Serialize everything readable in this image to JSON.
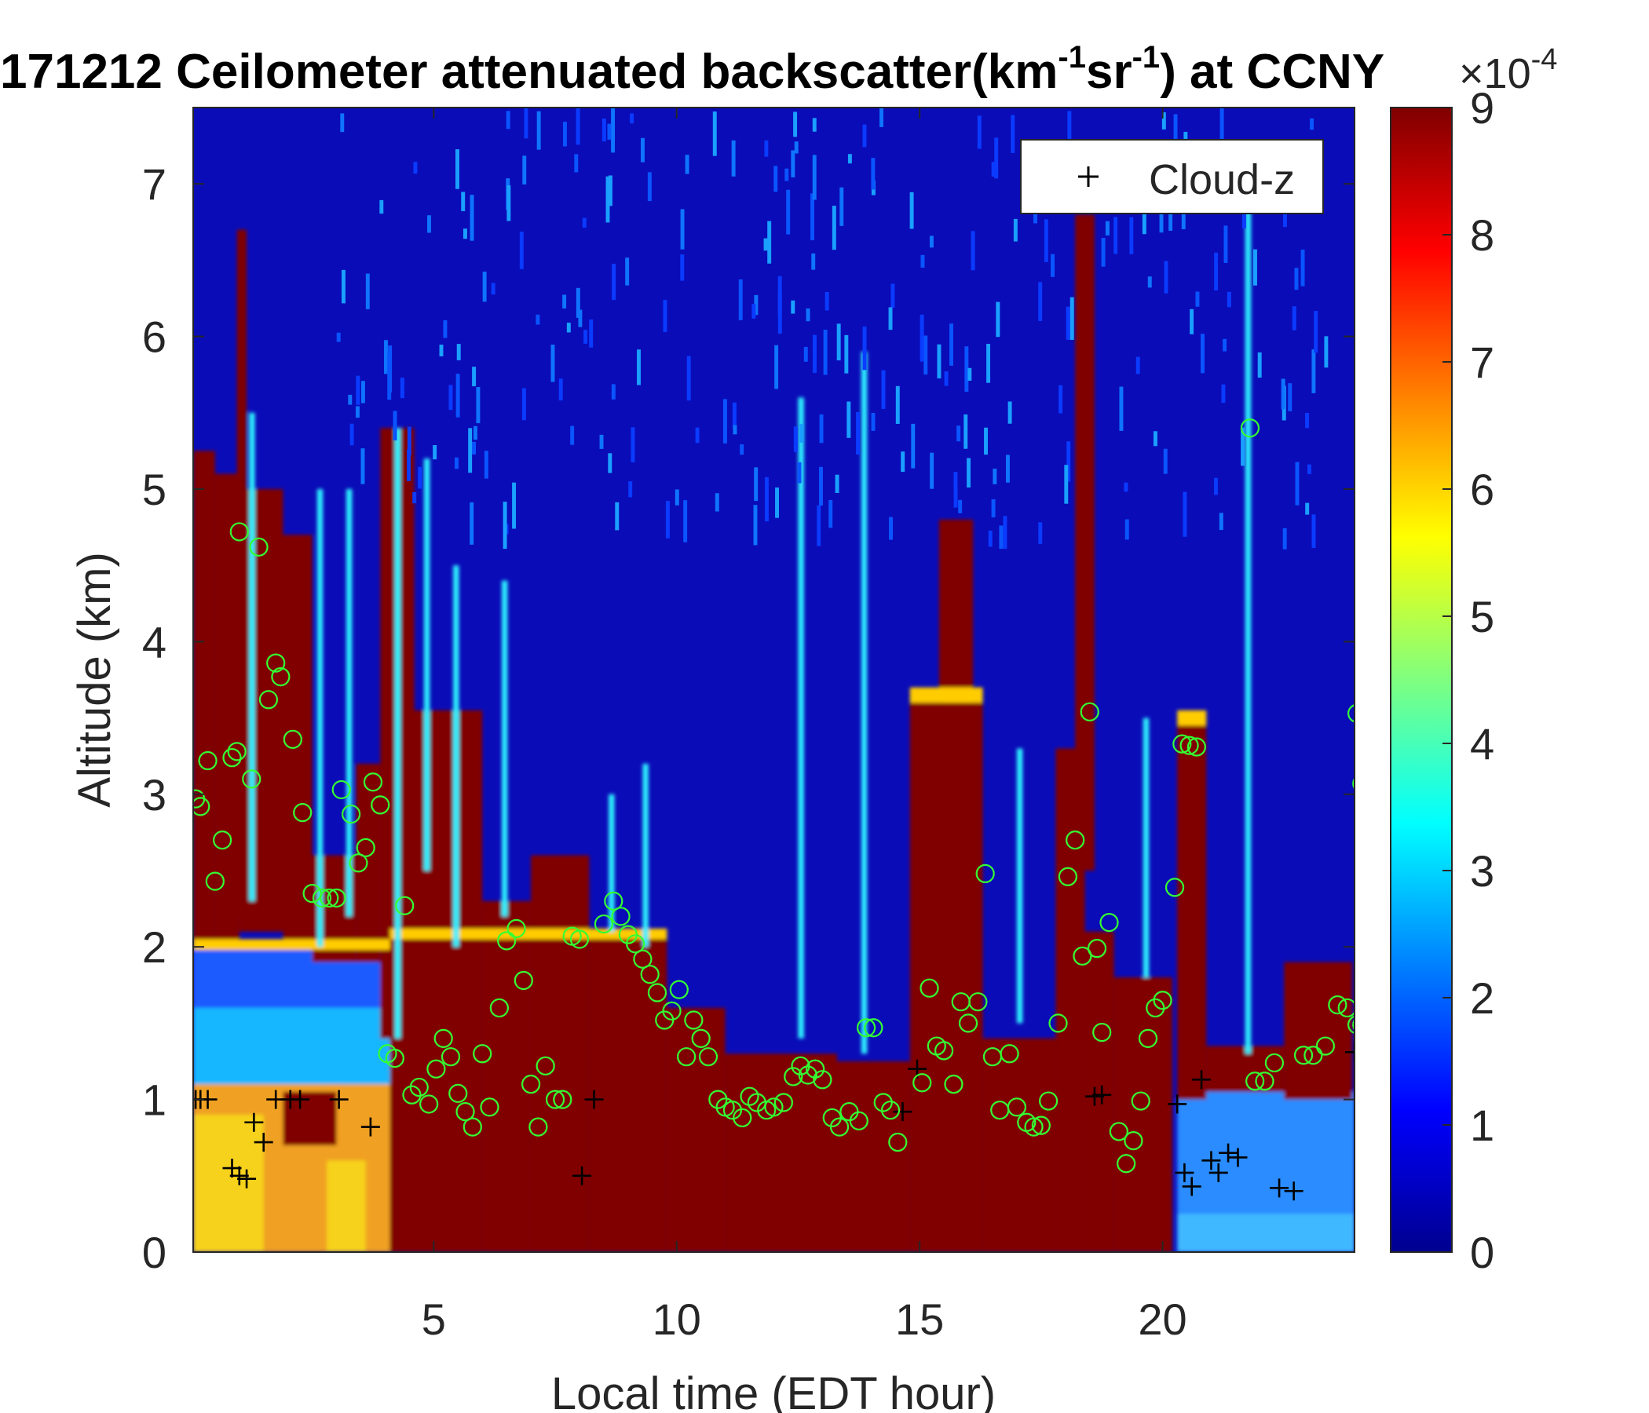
{
  "chart_data": {
    "type": "heatmap",
    "title_parts": {
      "prefix": "171212 Ceilometer attenuated backscatter(km",
      "sup1": "-1",
      "mid": "sr",
      "sup2": "-1",
      "suffix": ") at CCNY"
    },
    "xlabel": "Local time (EDT hour)",
    "ylabel": "Altitude (km)",
    "xlim": [
      0.05,
      23.95
    ],
    "ylim": [
      0,
      7.5
    ],
    "xticks": [
      "5",
      "10",
      "15",
      "20"
    ],
    "xtick_values": [
      5,
      10,
      15,
      20
    ],
    "yticks": [
      "0",
      "1",
      "2",
      "3",
      "4",
      "5",
      "6",
      "7"
    ],
    "ytick_values": [
      0,
      1,
      2,
      3,
      4,
      5,
      6,
      7
    ],
    "colorbar": {
      "ticks": [
        "0",
        "1",
        "2",
        "3",
        "4",
        "5",
        "6",
        "7",
        "8",
        "9"
      ],
      "tick_values": [
        0,
        1,
        2,
        3,
        4,
        5,
        6,
        7,
        8,
        9
      ],
      "range": [
        0,
        9
      ],
      "exponent_base": "×10",
      "exponent": "-4",
      "colormap": "jet"
    },
    "legend": {
      "entries": [
        {
          "name": "Cloud-z",
          "marker": "+",
          "color": "#000000"
        }
      ],
      "placement": "top-right"
    },
    "series": [
      {
        "name": "Cloud-z",
        "marker": "+",
        "color": "#000000",
        "points": [
          [
            0.1,
            1.0
          ],
          [
            0.2,
            1.0
          ],
          [
            0.35,
            1.0
          ],
          [
            0.85,
            0.55
          ],
          [
            1.0,
            0.5
          ],
          [
            1.15,
            0.48
          ],
          [
            1.3,
            0.85
          ],
          [
            1.5,
            0.72
          ],
          [
            1.75,
            1.0
          ],
          [
            2.05,
            1.0
          ],
          [
            2.25,
            1.0
          ],
          [
            3.05,
            1.0
          ],
          [
            3.7,
            0.82
          ],
          [
            8.05,
            0.5
          ],
          [
            8.3,
            1.0
          ],
          [
            14.65,
            0.92
          ],
          [
            14.95,
            1.2
          ],
          [
            18.6,
            1.02
          ],
          [
            18.75,
            1.03
          ],
          [
            20.3,
            0.97
          ],
          [
            20.45,
            0.52
          ],
          [
            20.6,
            0.43
          ],
          [
            20.8,
            1.13
          ],
          [
            21.0,
            0.6
          ],
          [
            21.15,
            0.52
          ],
          [
            21.35,
            0.65
          ],
          [
            21.55,
            0.62
          ],
          [
            22.4,
            0.42
          ],
          [
            22.7,
            0.4
          ],
          [
            23.95,
            1.31
          ]
        ]
      },
      {
        "marker": "o",
        "color": "#33ff33",
        "points": [
          [
            0.1,
            2.97
          ],
          [
            0.2,
            2.92
          ],
          [
            0.35,
            3.22
          ],
          [
            0.5,
            2.43
          ],
          [
            0.65,
            2.7
          ],
          [
            0.85,
            3.24
          ],
          [
            0.95,
            3.28
          ],
          [
            1.0,
            4.72
          ],
          [
            1.25,
            3.1
          ],
          [
            1.4,
            4.62
          ],
          [
            1.6,
            3.62
          ],
          [
            1.75,
            3.86
          ],
          [
            1.85,
            3.77
          ],
          [
            2.1,
            3.36
          ],
          [
            2.3,
            2.88
          ],
          [
            2.5,
            2.35
          ],
          [
            2.7,
            2.32
          ],
          [
            2.85,
            2.32
          ],
          [
            3.0,
            2.32
          ],
          [
            3.1,
            3.03
          ],
          [
            3.3,
            2.87
          ],
          [
            3.45,
            2.55
          ],
          [
            3.6,
            2.65
          ],
          [
            3.75,
            3.08
          ],
          [
            3.9,
            2.93
          ],
          [
            4.05,
            1.3
          ],
          [
            4.2,
            1.27
          ],
          [
            4.4,
            2.27
          ],
          [
            4.55,
            1.03
          ],
          [
            4.7,
            1.08
          ],
          [
            4.9,
            0.97
          ],
          [
            5.05,
            1.2
          ],
          [
            5.2,
            1.4
          ],
          [
            5.35,
            1.28
          ],
          [
            5.5,
            1.04
          ],
          [
            5.65,
            0.92
          ],
          [
            5.8,
            0.82
          ],
          [
            6.0,
            1.3
          ],
          [
            6.15,
            0.95
          ],
          [
            6.35,
            1.6
          ],
          [
            6.5,
            2.04
          ],
          [
            6.7,
            2.12
          ],
          [
            6.85,
            1.78
          ],
          [
            7.0,
            1.1
          ],
          [
            7.15,
            0.82
          ],
          [
            7.3,
            1.22
          ],
          [
            7.5,
            1.0
          ],
          [
            7.65,
            1.0
          ],
          [
            7.85,
            2.07
          ],
          [
            8.0,
            2.05
          ],
          [
            8.5,
            2.15
          ],
          [
            8.7,
            2.3
          ],
          [
            8.85,
            2.2
          ],
          [
            9.0,
            2.08
          ],
          [
            9.15,
            2.02
          ],
          [
            9.3,
            1.92
          ],
          [
            9.45,
            1.82
          ],
          [
            9.6,
            1.7
          ],
          [
            9.75,
            1.52
          ],
          [
            9.9,
            1.58
          ],
          [
            10.05,
            1.72
          ],
          [
            10.2,
            1.28
          ],
          [
            10.35,
            1.52
          ],
          [
            10.5,
            1.4
          ],
          [
            10.65,
            1.28
          ],
          [
            10.85,
            1.0
          ],
          [
            11.0,
            0.95
          ],
          [
            11.15,
            0.93
          ],
          [
            11.35,
            0.88
          ],
          [
            11.5,
            1.02
          ],
          [
            11.65,
            0.98
          ],
          [
            11.85,
            0.93
          ],
          [
            12.0,
            0.95
          ],
          [
            12.2,
            0.98
          ],
          [
            12.4,
            1.15
          ],
          [
            12.55,
            1.22
          ],
          [
            12.7,
            1.16
          ],
          [
            12.85,
            1.2
          ],
          [
            13.0,
            1.13
          ],
          [
            13.2,
            0.88
          ],
          [
            13.35,
            0.82
          ],
          [
            13.55,
            0.92
          ],
          [
            13.75,
            0.86
          ],
          [
            13.9,
            1.47
          ],
          [
            14.05,
            1.47
          ],
          [
            14.25,
            0.98
          ],
          [
            14.4,
            0.93
          ],
          [
            14.55,
            0.72
          ],
          [
            15.05,
            1.11
          ],
          [
            15.2,
            1.73
          ],
          [
            15.35,
            1.35
          ],
          [
            15.5,
            1.32
          ],
          [
            15.7,
            1.1
          ],
          [
            15.85,
            1.64
          ],
          [
            16.0,
            1.5
          ],
          [
            16.2,
            1.64
          ],
          [
            16.35,
            2.48
          ],
          [
            16.5,
            1.28
          ],
          [
            16.65,
            0.93
          ],
          [
            16.85,
            1.3
          ],
          [
            17.0,
            0.95
          ],
          [
            17.2,
            0.85
          ],
          [
            17.35,
            0.82
          ],
          [
            17.5,
            0.83
          ],
          [
            17.65,
            0.99
          ],
          [
            17.85,
            1.5
          ],
          [
            18.05,
            2.46
          ],
          [
            18.2,
            2.7
          ],
          [
            18.35,
            1.94
          ],
          [
            18.5,
            3.54
          ],
          [
            18.65,
            1.99
          ],
          [
            18.75,
            1.44
          ],
          [
            18.9,
            2.16
          ],
          [
            19.1,
            0.79
          ],
          [
            19.25,
            0.58
          ],
          [
            19.4,
            0.73
          ],
          [
            19.55,
            0.99
          ],
          [
            19.7,
            1.4
          ],
          [
            19.85,
            1.6
          ],
          [
            20.0,
            1.65
          ],
          [
            20.25,
            2.39
          ],
          [
            20.4,
            3.33
          ],
          [
            20.55,
            3.32
          ],
          [
            20.7,
            3.31
          ],
          [
            21.8,
            5.4
          ],
          [
            21.9,
            1.12
          ],
          [
            22.1,
            1.12
          ],
          [
            22.3,
            1.24
          ],
          [
            22.9,
            1.29
          ],
          [
            23.1,
            1.29
          ],
          [
            23.35,
            1.35
          ],
          [
            23.6,
            1.62
          ],
          [
            23.8,
            1.6
          ],
          [
            24.0,
            1.49
          ],
          [
            24.1,
            1.49
          ],
          [
            24.1,
            3.07
          ],
          [
            24.0,
            3.53
          ]
        ]
      }
    ]
  }
}
